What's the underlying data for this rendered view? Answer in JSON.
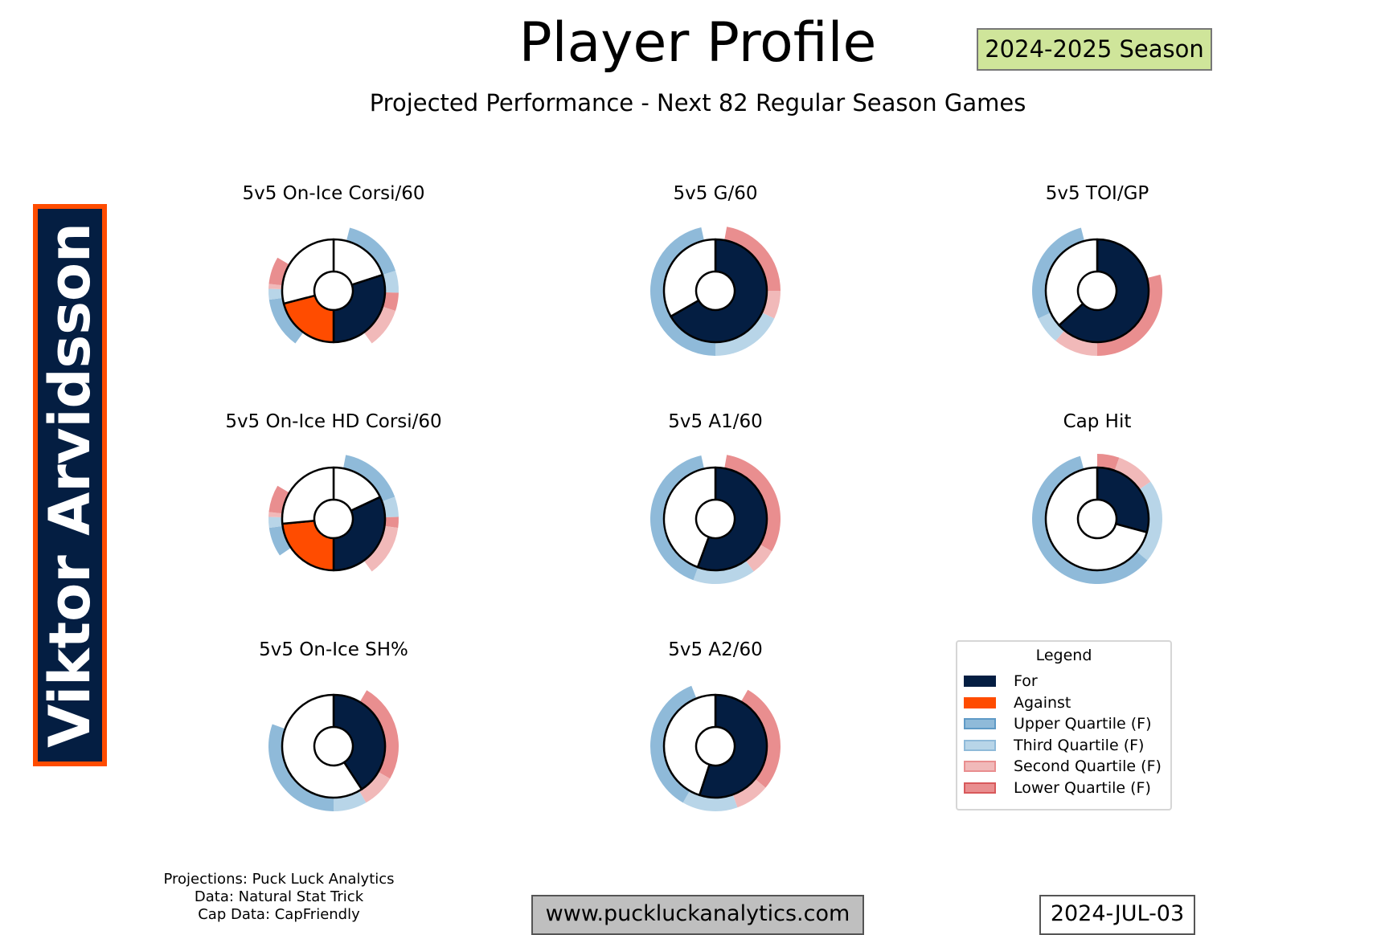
{
  "header": {
    "title": "Player Profile",
    "season": "2024-2025 Season",
    "subtitle": "Projected Performance - Next 82 Regular Season Games"
  },
  "player": {
    "name": "Viktor Arvidsson"
  },
  "colors": {
    "for": "#041E42",
    "against": "#FF4C00",
    "upper": "#8FBAD9",
    "third": "#B8D5E8",
    "second": "#F1B9B9",
    "lower": "#E98E8F",
    "empty": "#FFFFFF"
  },
  "chart_data": [
    {
      "type": "pie",
      "title": "5v5 On-Ice Corsi/60",
      "for_share_of_half": 0.6,
      "against_share_of_half": 0.42,
      "wedges": [
        [
          "empty",
          0.2
        ],
        [
          "for",
          0.3
        ],
        [
          "against",
          0.21
        ],
        [
          "empty",
          0.29
        ]
      ],
      "ring": [
        [
          "upper",
          0.04,
          0.2
        ],
        [
          "third",
          0.2,
          0.255
        ],
        [
          "lower",
          0.255,
          0.3
        ],
        [
          "second",
          0.3,
          0.4
        ],
        [
          "upper",
          0.6,
          0.728
        ],
        [
          "third",
          0.728,
          0.755
        ],
        [
          "second",
          0.755,
          0.767
        ],
        [
          "lower",
          0.767,
          0.835
        ]
      ]
    },
    {
      "type": "pie",
      "title": "5v5 G/60",
      "for_share": 0.667,
      "wedges": [
        [
          "for",
          0.667
        ],
        [
          "empty",
          0.333
        ]
      ],
      "ring": [
        [
          "lower",
          0.028,
          0.25
        ],
        [
          "second",
          0.25,
          0.32
        ],
        [
          "third",
          0.32,
          0.5
        ],
        [
          "upper",
          0.5,
          0.965
        ]
      ]
    },
    {
      "type": "pie",
      "title": "5v5 TOI/GP",
      "for_share": 0.633,
      "wedges": [
        [
          "for",
          0.633
        ],
        [
          "empty",
          0.367
        ]
      ],
      "ring": [
        [
          "lower",
          0.21,
          0.5
        ],
        [
          "second",
          0.5,
          0.61
        ],
        [
          "third",
          0.61,
          0.68
        ],
        [
          "upper",
          0.68,
          0.96
        ]
      ]
    },
    {
      "type": "pie",
      "title": "5v5 On-Ice HD Corsi/60",
      "for_share_of_half": 0.64,
      "against_share_of_half": 0.47,
      "wedges": [
        [
          "empty",
          0.18
        ],
        [
          "for",
          0.32
        ],
        [
          "against",
          0.235
        ],
        [
          "empty",
          0.265
        ]
      ],
      "ring": [
        [
          "upper",
          0.03,
          0.195
        ],
        [
          "third",
          0.195,
          0.245
        ],
        [
          "lower",
          0.245,
          0.272
        ],
        [
          "second",
          0.272,
          0.4
        ],
        [
          "upper",
          0.655,
          0.728
        ],
        [
          "third",
          0.728,
          0.755
        ],
        [
          "second",
          0.755,
          0.767
        ],
        [
          "lower",
          0.767,
          0.835
        ]
      ]
    },
    {
      "type": "pie",
      "title": "5v5 A1/60",
      "for_share": 0.556,
      "wedges": [
        [
          "for",
          0.556
        ],
        [
          "empty",
          0.444
        ]
      ],
      "ring": [
        [
          "lower",
          0.028,
          0.333
        ],
        [
          "second",
          0.333,
          0.4
        ],
        [
          "third",
          0.4,
          0.555
        ],
        [
          "upper",
          0.555,
          0.965
        ]
      ]
    },
    {
      "type": "pie",
      "title": "Cap Hit",
      "for_share": 0.292,
      "wedges": [
        [
          "for",
          0.292
        ],
        [
          "empty",
          0.708
        ]
      ],
      "ring": [
        [
          "lower",
          0.0,
          0.055
        ],
        [
          "second",
          0.055,
          0.153
        ],
        [
          "third",
          0.153,
          0.36
        ],
        [
          "upper",
          0.36,
          0.958
        ]
      ]
    },
    {
      "type": "pie",
      "title": "5v5 On-Ice SH%",
      "for_share": 0.408,
      "wedges": [
        [
          "for",
          0.408
        ],
        [
          "empty",
          0.592
        ]
      ],
      "ring": [
        [
          "lower",
          0.085,
          0.333
        ],
        [
          "second",
          0.333,
          0.417
        ],
        [
          "third",
          0.417,
          0.5
        ],
        [
          "upper",
          0.5,
          0.805
        ]
      ]
    },
    {
      "type": "pie",
      "title": "5v5 A2/60",
      "for_share": 0.55,
      "wedges": [
        [
          "for",
          0.55
        ],
        [
          "empty",
          0.45
        ]
      ],
      "ring": [
        [
          "lower",
          0.083,
          0.36
        ],
        [
          "second",
          0.36,
          0.445
        ],
        [
          "third",
          0.445,
          0.583
        ],
        [
          "upper",
          0.583,
          0.94
        ]
      ]
    }
  ],
  "legend": {
    "title": "Legend",
    "items": [
      {
        "label": "For",
        "key": "for"
      },
      {
        "label": "Against",
        "key": "against"
      },
      {
        "label": "Upper Quartile (F)",
        "key": "upper"
      },
      {
        "label": "Third Quartile (F)",
        "key": "third"
      },
      {
        "label": "Second Quartile (F)",
        "key": "second"
      },
      {
        "label": "Lower Quartile (F)",
        "key": "lower"
      }
    ]
  },
  "footer": {
    "credits": [
      "Projections: Puck Luck Analytics",
      "Data: Natural Stat Trick",
      "Cap Data: CapFriendly"
    ],
    "website": "www.puckluckanalytics.com",
    "date": "2024-JUL-03"
  }
}
